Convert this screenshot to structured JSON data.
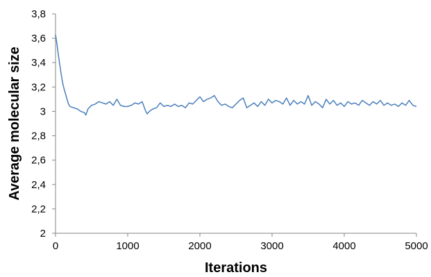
{
  "chart_data": {
    "type": "line",
    "title": "",
    "xlabel": "Iterations",
    "ylabel": "Average molecular size",
    "xlim": [
      0,
      5000
    ],
    "ylim": [
      2,
      3.8
    ],
    "x_ticks": [
      0,
      1000,
      2000,
      3000,
      4000,
      5000
    ],
    "x_tick_labels": [
      "0",
      "1000",
      "2000",
      "3000",
      "4000",
      "5000"
    ],
    "y_ticks": [
      2,
      2.2,
      2.4,
      2.6,
      2.8,
      3,
      3.2,
      3.4,
      3.6,
      3.8
    ],
    "y_tick_labels": [
      "2",
      "2,2",
      "2,4",
      "2,6",
      "2,8",
      "3",
      "3,2",
      "3,4",
      "3,6",
      "3,8"
    ],
    "grid": false,
    "legend": "none",
    "series": [
      {
        "color": "#4a7ebb",
        "x": [
          0,
          20,
          40,
          60,
          80,
          100,
          120,
          140,
          160,
          180,
          200,
          250,
          300,
          350,
          400,
          420,
          450,
          500,
          550,
          600,
          650,
          700,
          750,
          800,
          850,
          900,
          950,
          1000,
          1050,
          1100,
          1150,
          1200,
          1250,
          1270,
          1300,
          1350,
          1400,
          1450,
          1500,
          1550,
          1600,
          1650,
          1700,
          1750,
          1800,
          1850,
          1900,
          1950,
          2000,
          2050,
          2100,
          2150,
          2200,
          2250,
          2300,
          2350,
          2400,
          2450,
          2500,
          2550,
          2600,
          2650,
          2700,
          2750,
          2800,
          2850,
          2900,
          2950,
          3000,
          3050,
          3100,
          3150,
          3200,
          3250,
          3300,
          3350,
          3400,
          3450,
          3500,
          3550,
          3600,
          3650,
          3700,
          3750,
          3800,
          3850,
          3900,
          3950,
          4000,
          4050,
          4100,
          4150,
          4200,
          4250,
          4300,
          4350,
          4400,
          4450,
          4500,
          4550,
          4600,
          4650,
          4700,
          4750,
          4800,
          4850,
          4900,
          4950,
          5000
        ],
        "y": [
          3.63,
          3.55,
          3.46,
          3.38,
          3.3,
          3.23,
          3.18,
          3.14,
          3.1,
          3.06,
          3.04,
          3.03,
          3.02,
          3.0,
          2.99,
          2.97,
          3.02,
          3.05,
          3.06,
          3.08,
          3.07,
          3.06,
          3.08,
          3.05,
          3.1,
          3.05,
          3.04,
          3.04,
          3.05,
          3.07,
          3.06,
          3.08,
          3.0,
          2.98,
          3.0,
          3.02,
          3.03,
          3.07,
          3.04,
          3.05,
          3.04,
          3.06,
          3.04,
          3.05,
          3.03,
          3.07,
          3.06,
          3.09,
          3.12,
          3.08,
          3.1,
          3.11,
          3.13,
          3.08,
          3.05,
          3.06,
          3.04,
          3.03,
          3.06,
          3.09,
          3.11,
          3.03,
          3.05,
          3.07,
          3.04,
          3.08,
          3.05,
          3.1,
          3.07,
          3.09,
          3.08,
          3.06,
          3.11,
          3.05,
          3.09,
          3.06,
          3.08,
          3.06,
          3.13,
          3.05,
          3.08,
          3.06,
          3.03,
          3.1,
          3.06,
          3.09,
          3.05,
          3.07,
          3.04,
          3.08,
          3.06,
          3.07,
          3.05,
          3.09,
          3.07,
          3.05,
          3.08,
          3.06,
          3.09,
          3.05,
          3.07,
          3.05,
          3.06,
          3.04,
          3.07,
          3.05,
          3.09,
          3.05,
          3.04
        ]
      }
    ]
  }
}
